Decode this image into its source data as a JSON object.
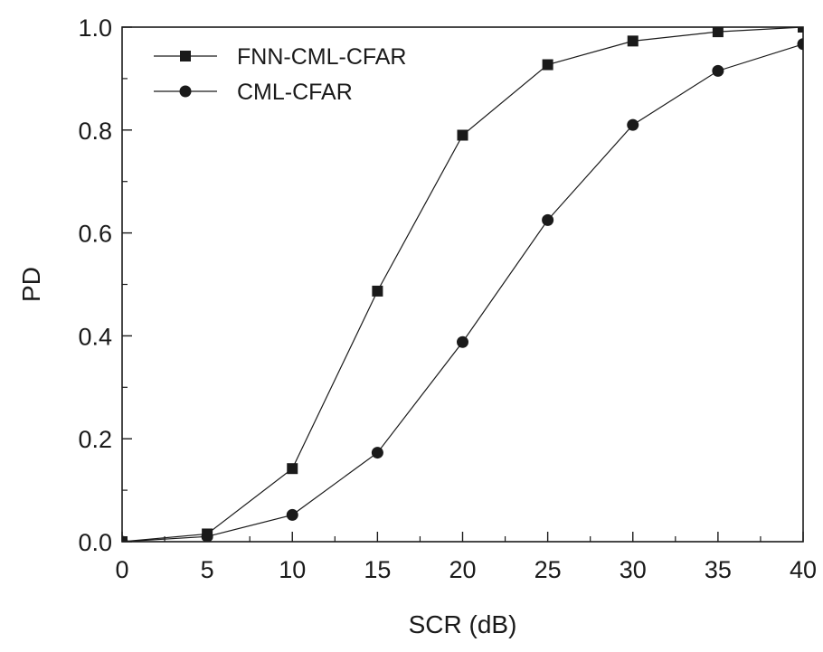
{
  "chart_data": {
    "type": "line",
    "title": "",
    "xlabel": "SCR (dB)",
    "ylabel": "PD",
    "xlim": [
      0,
      40
    ],
    "ylim": [
      0,
      1.0
    ],
    "x_ticks": [
      0,
      5,
      10,
      15,
      20,
      25,
      30,
      35,
      40
    ],
    "x_tick_labels": [
      "0",
      "5",
      "10",
      "15",
      "20",
      "25",
      "30",
      "35",
      "40"
    ],
    "x_minor_step": 2.5,
    "y_ticks": [
      0,
      0.2,
      0.4,
      0.6,
      0.8,
      1.0
    ],
    "y_tick_labels": [
      "0.0",
      "0.2",
      "0.4",
      "0.6",
      "0.8",
      "1.0"
    ],
    "y_minor_step": 0.1,
    "grid": false,
    "legend_position": "top-left",
    "x": [
      0,
      5,
      10,
      15,
      20,
      25,
      30,
      35,
      40
    ],
    "series": [
      {
        "name": "FNN-CML-CFAR",
        "marker": "square",
        "color": "#1a1a1a",
        "values": [
          0.0,
          0.015,
          0.142,
          0.487,
          0.79,
          0.927,
          0.973,
          0.991,
          1.0
        ]
      },
      {
        "name": "CML-CFAR",
        "marker": "circle",
        "color": "#1a1a1a",
        "values": [
          0.0,
          0.01,
          0.052,
          0.173,
          0.388,
          0.625,
          0.81,
          0.915,
          0.967
        ]
      }
    ]
  }
}
